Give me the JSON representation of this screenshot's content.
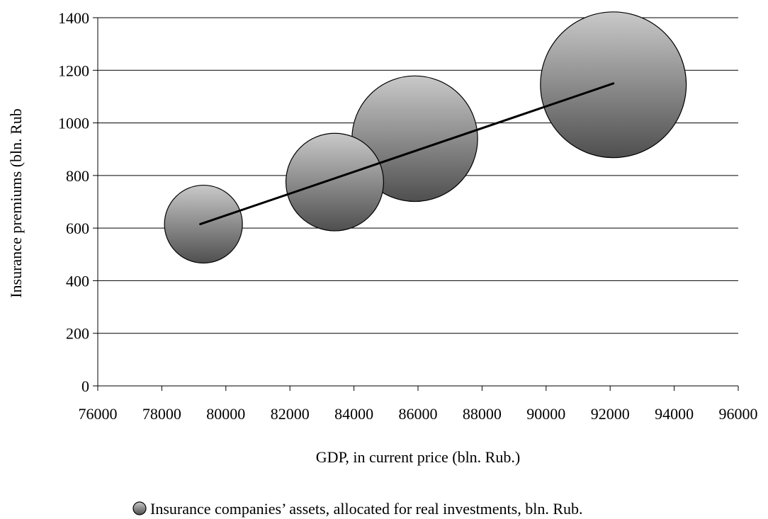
{
  "chart_data": {
    "type": "bubble",
    "xlabel": "GDP, in current price (bln. Rub.)",
    "ylabel": "Insurance premiums (bln. Rub",
    "xlim": [
      76000,
      96000
    ],
    "ylim": [
      0,
      1400
    ],
    "x_ticks": [
      76000,
      78000,
      80000,
      82000,
      84000,
      86000,
      88000,
      90000,
      92000,
      94000,
      96000
    ],
    "y_ticks": [
      0,
      200,
      400,
      600,
      800,
      1000,
      1200,
      1400
    ],
    "grid": "horizontal",
    "legend_position": "bottom",
    "series": [
      {
        "name": "Insurance companies’ assets, allocated for real investments, bln. Rub.",
        "marker_color": "#8c8c8c",
        "points": [
          {
            "x": 79300,
            "y": 615,
            "size": 1
          },
          {
            "x": 83400,
            "y": 775,
            "size": 1.57
          },
          {
            "x": 85900,
            "y": 940,
            "size": 2.6
          },
          {
            "x": 92100,
            "y": 1145,
            "size": 3.5
          }
        ]
      }
    ],
    "trendline": {
      "type": "linear",
      "color": "#000000",
      "points": [
        {
          "x": 79200,
          "y": 615
        },
        {
          "x": 92100,
          "y": 1150
        }
      ]
    }
  }
}
